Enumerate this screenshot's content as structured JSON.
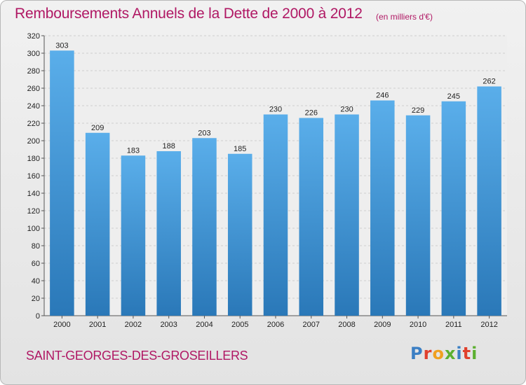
{
  "header": {
    "title": "Remboursements Annuels de la Dette de 2000 à 2012",
    "unit": "(en milliers d'€)"
  },
  "footer": {
    "commune": "SAINT-GEORGES-DES-GROSEILLERS",
    "logo": "Proxiti",
    "logo_colors": [
      "#3b7fc4",
      "#e0402d",
      "#f0a020",
      "#5cb030",
      "#3b7fc4",
      "#e0402d",
      "#5cb030"
    ]
  },
  "chart_data": {
    "type": "bar",
    "title": "Remboursements Annuels de la Dette de 2000 à 2012",
    "subtitle": "(en milliers d'€)",
    "categories": [
      "2000",
      "2001",
      "2002",
      "2003",
      "2004",
      "2005",
      "2006",
      "2007",
      "2008",
      "2009",
      "2010",
      "2011",
      "2012"
    ],
    "values": [
      303,
      209,
      183,
      188,
      203,
      185,
      230,
      226,
      230,
      246,
      229,
      245,
      262
    ],
    "ylim": [
      0,
      320
    ],
    "yticks": [
      0,
      20,
      40,
      60,
      80,
      100,
      120,
      140,
      160,
      180,
      200,
      220,
      240,
      260,
      280,
      300,
      320
    ],
    "grid": true,
    "bar_color_top": "#5aaeea",
    "bar_color_bottom": "#2a78b8",
    "title_color": "#b01864"
  }
}
